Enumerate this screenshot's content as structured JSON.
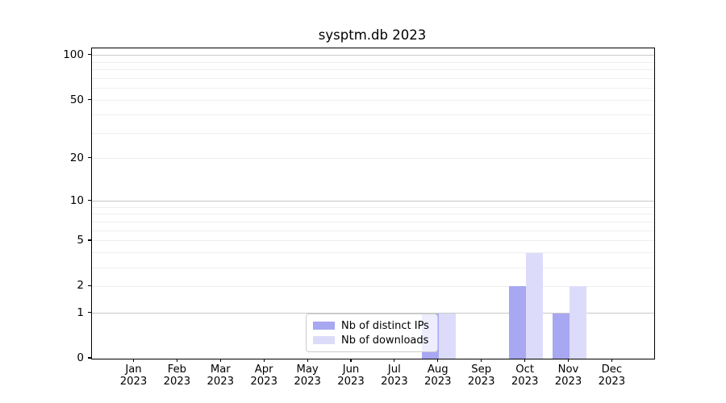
{
  "chart_data": {
    "type": "bar",
    "title": "sysptm.db 2023",
    "categories": [
      "Jan 2023",
      "Feb 2023",
      "Mar 2023",
      "Apr 2023",
      "May 2023",
      "Jun 2023",
      "Jul 2023",
      "Aug 2023",
      "Sep 2023",
      "Oct 2023",
      "Nov 2023",
      "Dec 2023"
    ],
    "series": [
      {
        "name": "Nb of distinct IPs",
        "color": "#a7a7f2",
        "values": [
          0,
          0,
          0,
          0,
          0,
          0,
          0,
          1,
          0,
          2,
          1,
          0
        ]
      },
      {
        "name": "Nb of downloads",
        "color": "#dcdcfa",
        "values": [
          0,
          0,
          0,
          0,
          0,
          0,
          0,
          1,
          0,
          4,
          2,
          0
        ]
      }
    ],
    "xlabel": "",
    "ylabel": "",
    "yscale": "log1p",
    "ylim": [
      0,
      112
    ],
    "ytick_labels": [
      0,
      1,
      2,
      5,
      10,
      20,
      50,
      100
    ],
    "major_gridlines": [
      1,
      10,
      100
    ],
    "minor_gridlines": [
      2,
      3,
      4,
      5,
      6,
      7,
      8,
      9,
      20,
      30,
      40,
      50,
      60,
      70,
      80,
      90
    ],
    "grid": true,
    "legend_position": "lower center"
  }
}
